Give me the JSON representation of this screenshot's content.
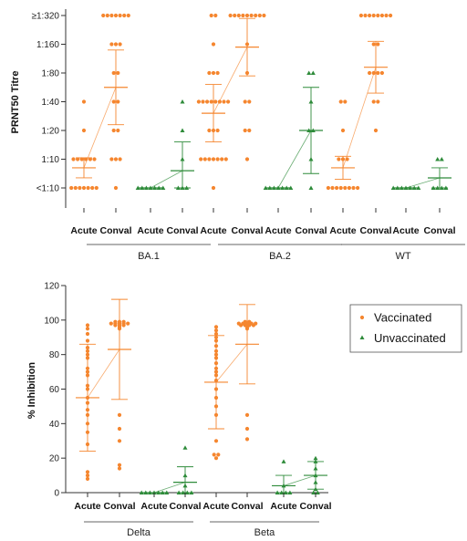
{
  "colors": {
    "vaccinated": "#f5862f",
    "unvaccinated": "#2e8b3a",
    "axis": "#333333"
  },
  "chart_data": [
    {
      "type": "scatter",
      "ylabel": "PRNT50 Titre",
      "y_ticks": [
        "<1:10",
        "1:10",
        "1:20",
        "1:40",
        "1:80",
        "1:160",
        "≥1:320"
      ],
      "ylim": [
        0,
        6
      ],
      "categories": [
        "Acute",
        "Conval",
        "Acute",
        "Conval",
        "Acute",
        "Conval",
        "Acute",
        "Conval",
        "Acute",
        "Conval",
        "Acute",
        "Conval"
      ],
      "groups": [
        {
          "label": "BA.1",
          "series": [
            {
              "name": "Vaccinated",
              "acute": [
                0,
                0,
                0,
                0,
                0,
                0,
                0,
                1,
                1,
                1,
                1,
                1,
                1,
                2,
                3
              ],
              "conval": [
                0,
                1,
                1,
                1,
                2,
                2,
                3,
                3,
                4,
                4,
                5,
                5,
                5,
                6,
                6,
                6,
                6,
                6,
                6,
                6
              ],
              "acute_summary": {
                "mean": 0.7,
                "sd": 0.35
              },
              "conval_summary": {
                "mean": 3.5,
                "sd": 1.3
              }
            },
            {
              "name": "Unvaccinated",
              "acute": [
                0,
                0,
                0,
                0,
                0,
                0,
                0
              ],
              "conval": [
                0,
                0,
                0,
                1,
                2,
                3
              ],
              "acute_summary": {
                "mean": 0,
                "sd": 0
              },
              "conval_summary": {
                "mean": 0.6,
                "sd": 1.0
              }
            }
          ]
        },
        {
          "label": "BA.2",
          "series": [
            {
              "name": "Vaccinated",
              "acute": [
                0,
                1,
                1,
                1,
                1,
                1,
                1,
                1,
                2,
                2,
                2,
                3,
                3,
                3,
                3,
                3,
                3,
                3,
                3,
                4,
                4,
                4,
                5,
                6,
                6
              ],
              "conval": [
                1,
                2,
                2,
                3,
                3,
                4,
                5,
                6,
                6,
                6,
                6,
                6,
                6,
                6,
                6,
                6
              ],
              "acute_summary": {
                "mean": 2.6,
                "sd": 1.0
              },
              "conval_summary": {
                "mean": 4.9,
                "sd": 1.0
              }
            },
            {
              "name": "Unvaccinated",
              "acute": [
                0,
                0,
                0,
                0,
                0,
                0,
                0
              ],
              "conval": [
                0,
                1,
                2,
                2,
                3,
                4,
                4
              ],
              "acute_summary": {
                "mean": 0,
                "sd": 0
              },
              "conval_summary": {
                "mean": 2.0,
                "sd": 1.5
              }
            }
          ]
        },
        {
          "label": "WT",
          "series": [
            {
              "name": "Vaccinated",
              "acute": [
                0,
                0,
                0,
                0,
                0,
                0,
                0,
                0,
                1,
                1,
                1,
                2,
                3,
                3
              ],
              "conval": [
                2,
                3,
                3,
                4,
                4,
                4,
                4,
                5,
                5,
                6,
                6,
                6,
                6,
                6,
                6,
                6,
                6
              ],
              "acute_summary": {
                "mean": 0.7,
                "sd": 0.4
              },
              "conval_summary": {
                "mean": 4.2,
                "sd": 0.9
              }
            },
            {
              "name": "Unvaccinated",
              "acute": [
                0,
                0,
                0,
                0,
                0,
                0,
                0
              ],
              "conval": [
                0,
                0,
                0,
                0,
                1,
                1
              ],
              "acute_summary": {
                "mean": 0,
                "sd": 0
              },
              "conval_summary": {
                "mean": 0.35,
                "sd": 0.35
              }
            }
          ]
        }
      ]
    },
    {
      "type": "scatter",
      "ylabel": "% Inhibition",
      "ylim": [
        0,
        120
      ],
      "y_ticks": [
        "0",
        "20",
        "40",
        "60",
        "80",
        "100",
        "120"
      ],
      "categories": [
        "Acute",
        "Conval",
        "Acute",
        "Conval",
        "Acute",
        "Conval",
        "Acute",
        "Conval"
      ],
      "groups": [
        {
          "label": "Delta",
          "series": [
            {
              "name": "Vaccinated",
              "acute": [
                8,
                10,
                12,
                28,
                35,
                40,
                45,
                48,
                52,
                55,
                60,
                62,
                68,
                70,
                72,
                78,
                80,
                82,
                84,
                88,
                92,
                95,
                97
              ],
              "conval": [
                14,
                16,
                30,
                37,
                45,
                95,
                96,
                97,
                97,
                97,
                98,
                98,
                98,
                98,
                98,
                99,
                99,
                99
              ],
              "acute_summary": {
                "mean": 55,
                "sd": 31
              },
              "conval_summary": {
                "mean": 83,
                "sd": 29
              }
            },
            {
              "name": "Unvaccinated",
              "acute": [
                0,
                0,
                0,
                0,
                0,
                0,
                0
              ],
              "conval": [
                0,
                0,
                0,
                0,
                4,
                10,
                26
              ],
              "acute_summary": {
                "mean": 0,
                "sd": 0
              },
              "conval_summary": {
                "mean": 6,
                "sd": 9
              }
            }
          ]
        },
        {
          "label": "Beta",
          "series": [
            {
              "name": "Vaccinated",
              "acute": [
                20,
                22,
                22,
                30,
                45,
                50,
                55,
                60,
                65,
                68,
                70,
                72,
                75,
                78,
                80,
                82,
                85,
                88,
                90,
                92,
                94,
                96
              ],
              "conval": [
                31,
                37,
                45,
                95,
                96,
                97,
                97,
                97,
                97,
                98,
                98,
                98,
                98,
                98,
                99,
                99
              ],
              "acute_summary": {
                "mean": 64,
                "sd": 27
              },
              "conval_summary": {
                "mean": 86,
                "sd": 23
              }
            },
            {
              "name": "Unvaccinated",
              "acute": [
                0,
                0,
                0,
                0,
                4,
                18
              ],
              "conval": [
                0,
                0,
                2,
                6,
                10,
                14,
                18,
                20
              ],
              "acute_summary": {
                "mean": 4,
                "sd": 6
              },
              "conval_summary": {
                "mean": 10,
                "sd": 8
              }
            }
          ]
        }
      ],
      "legend": {
        "position": "right",
        "entries": [
          {
            "name": "Vaccinated",
            "marker": "circle"
          },
          {
            "name": "Unvaccinated",
            "marker": "triangle"
          }
        ]
      }
    }
  ]
}
